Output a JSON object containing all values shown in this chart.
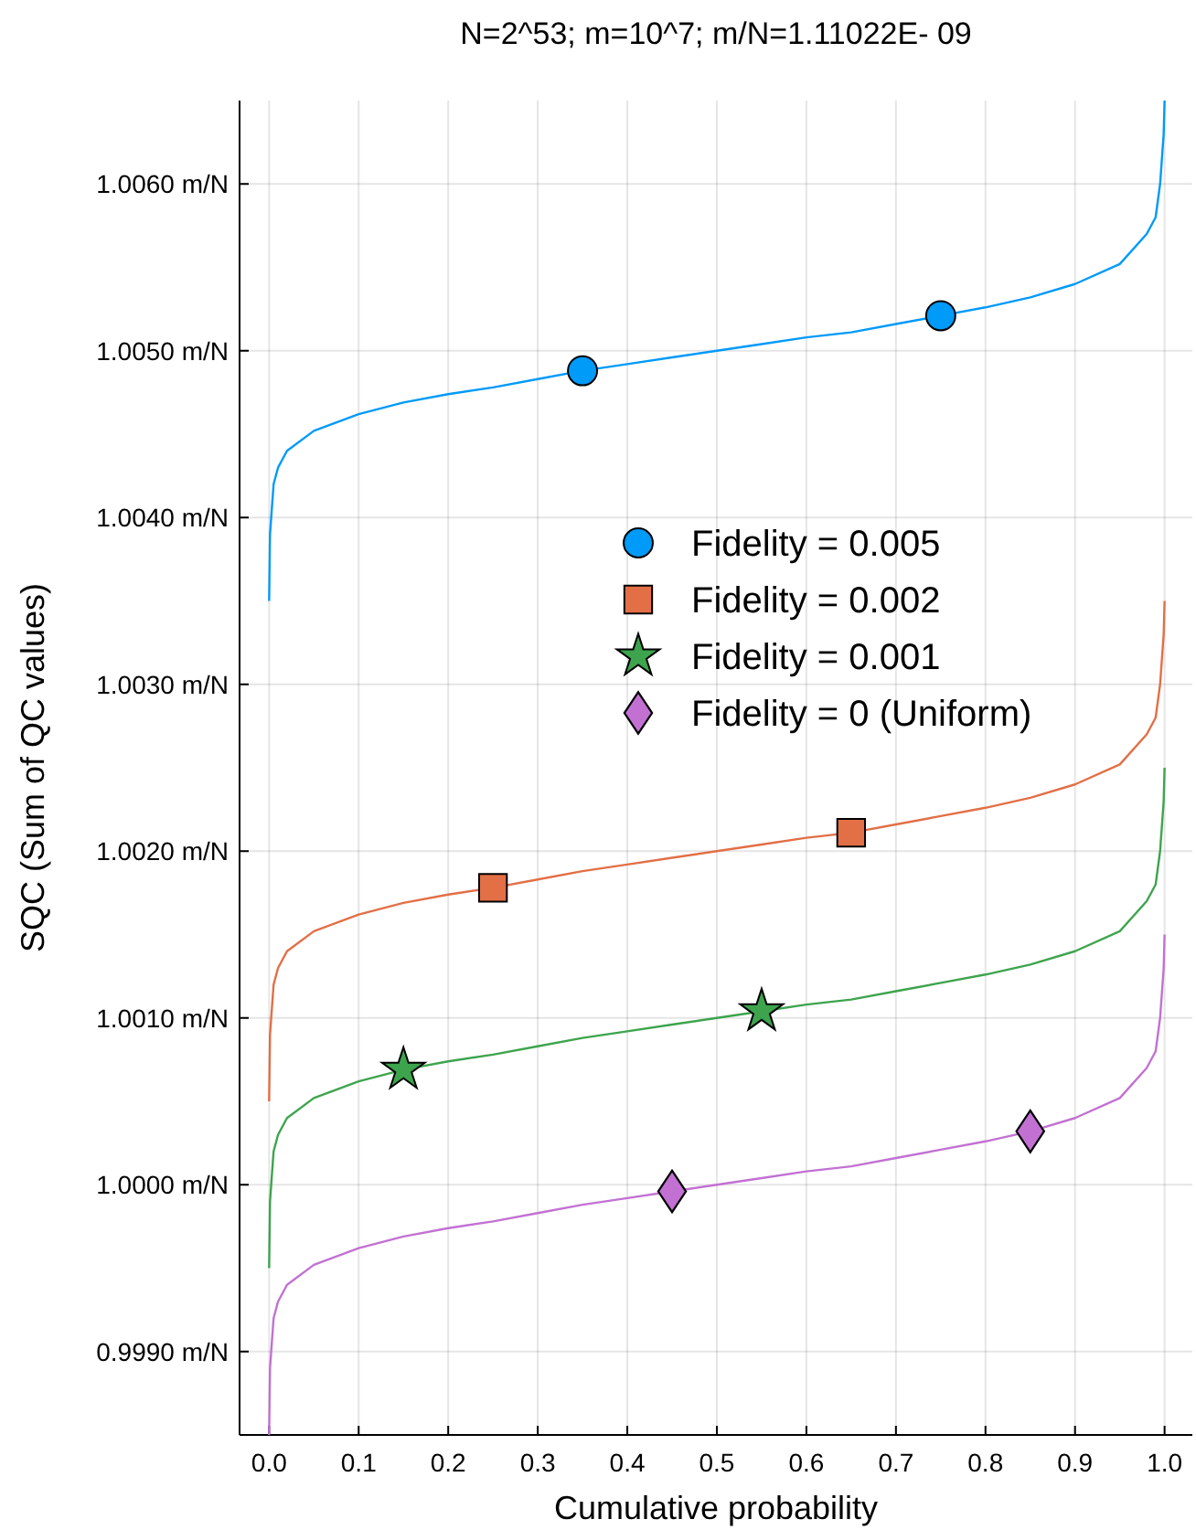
{
  "chart_data": {
    "type": "line",
    "title": "N=2^53; m=10^7; m/N=1.11022E- 09",
    "xlabel": "Cumulative probability",
    "ylabel": "SQC (Sum of QC values)",
    "x": [
      0,
      0.001,
      0.005,
      0.01,
      0.02,
      0.05,
      0.1,
      0.15,
      0.2,
      0.25,
      0.3,
      0.35,
      0.4,
      0.45,
      0.5,
      0.55,
      0.6,
      0.65,
      0.7,
      0.75,
      0.8,
      0.85,
      0.9,
      0.95,
      0.98,
      0.99,
      0.995,
      0.999,
      1.0
    ],
    "series": [
      {
        "color": "#009af9",
        "values": [
          1.0035,
          1.0039,
          1.0042,
          1.0043,
          1.0044,
          1.00452,
          1.00462,
          1.00469,
          1.00474,
          1.00478,
          1.00483,
          1.00488,
          1.00492,
          1.00496,
          1.005,
          1.00504,
          1.00508,
          1.00511,
          1.00516,
          1.00521,
          1.00526,
          1.00532,
          1.0054,
          1.00552,
          1.0057,
          1.0058,
          1.006,
          1.0063,
          1.0065
        ]
      },
      {
        "color": "#e26f46",
        "values": [
          1.0005,
          1.0009,
          1.0012,
          1.0013,
          1.0014,
          1.00152,
          1.00162,
          1.00169,
          1.00174,
          1.00178,
          1.00183,
          1.00188,
          1.00192,
          1.00196,
          1.002,
          1.00204,
          1.00208,
          1.00211,
          1.00216,
          1.00221,
          1.00226,
          1.00232,
          1.0024,
          1.00252,
          1.0027,
          1.0028,
          1.003,
          1.0033,
          1.0035
        ]
      },
      {
        "color": "#3da44d",
        "values": [
          0.9995,
          0.9999,
          1.0002,
          1.0003,
          1.0004,
          1.00052,
          1.00062,
          1.00069,
          1.00074,
          1.00078,
          1.00083,
          1.00088,
          1.00092,
          1.00096,
          1.001,
          1.00104,
          1.00108,
          1.00111,
          1.00116,
          1.00121,
          1.00126,
          1.00132,
          1.0014,
          1.00152,
          1.0017,
          1.0018,
          1.002,
          1.0023,
          1.0025
        ]
      },
      {
        "color": "#c271d2",
        "values": [
          0.9985,
          0.9989,
          0.9992,
          0.9993,
          0.9994,
          0.99952,
          0.99962,
          0.99969,
          0.99974,
          0.99978,
          0.99983,
          0.99988,
          0.99992,
          0.99996,
          1.0,
          1.00004,
          1.00008,
          1.00011,
          1.00016,
          1.00021,
          1.00026,
          1.00032,
          1.0004,
          1.00052,
          1.0007,
          1.0008,
          1.001,
          1.0013,
          1.0015
        ]
      },
      {
        "type": "scatter",
        "name": "Fidelity = 0.005",
        "color": "#009af9",
        "marker": "circle",
        "x": [
          0.35,
          0.75
        ],
        "values": [
          1.00488,
          1.00521
        ]
      },
      {
        "type": "scatter",
        "name": "Fidelity = 0.002",
        "color": "#e26f46",
        "marker": "square",
        "x": [
          0.25,
          0.65
        ],
        "values": [
          1.00178,
          1.00211
        ]
      },
      {
        "type": "scatter",
        "name": "Fidelity = 0.001",
        "color": "#3da44d",
        "marker": "star",
        "x": [
          0.15,
          0.55
        ],
        "values": [
          1.00069,
          1.00104
        ]
      },
      {
        "type": "scatter",
        "name": "Fidelity = 0 (Uniform)",
        "color": "#c271d2",
        "marker": "diamond",
        "x": [
          0.45,
          0.85
        ],
        "values": [
          0.99996,
          1.00032
        ]
      }
    ],
    "xlim": [
      -0.033,
      1.031
    ],
    "xticks": [
      {
        "value": 0,
        "label": "0.0"
      },
      0.1,
      0.2,
      0.3,
      0.4,
      0.5,
      0.6,
      0.7,
      0.8,
      0.9,
      {
        "value": 1,
        "label": "1.0"
      }
    ],
    "ylim": [
      0.9985,
      1.0065
    ],
    "yticks": [
      {
        "value": 0.999,
        "label": "0.9990 m/N"
      },
      {
        "value": 1.0,
        "label": "1.0000 m/N"
      },
      {
        "value": 1.001,
        "label": "1.0010 m/N"
      },
      {
        "value": 1.002,
        "label": "1.0020 m/N"
      },
      {
        "value": 1.003,
        "label": "1.0030 m/N"
      },
      {
        "value": 1.004,
        "label": "1.0040 m/N"
      },
      {
        "value": 1.005,
        "label": "1.0050 m/N"
      },
      {
        "value": 1.006,
        "label": "1.0060 m/N"
      }
    ],
    "grid": true,
    "legend": "right",
    "line_style": "solid"
  }
}
